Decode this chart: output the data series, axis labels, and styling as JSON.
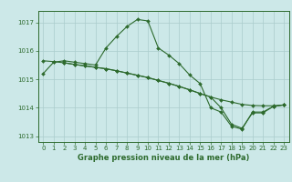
{
  "bg_color": "#cce8e8",
  "grid_color": "#aacccc",
  "line_color": "#2d6a2d",
  "xlabel": "Graphe pression niveau de la mer (hPa)",
  "xlim": [
    -0.5,
    23.5
  ],
  "ylim": [
    1012.8,
    1017.4
  ],
  "yticks": [
    1013,
    1014,
    1015,
    1016,
    1017
  ],
  "xticks": [
    0,
    1,
    2,
    3,
    4,
    5,
    6,
    7,
    8,
    9,
    10,
    11,
    12,
    13,
    14,
    15,
    16,
    17,
    18,
    19,
    20,
    21,
    22,
    23
  ],
  "series": [
    {
      "x": [
        0,
        1,
        2,
        3,
        4,
        5,
        6,
        7,
        8,
        9,
        10,
        11,
        12,
        13,
        14,
        15,
        16,
        17,
        18,
        19,
        20,
        21,
        22,
        23
      ],
      "y": [
        1015.2,
        1015.6,
        1015.65,
        1015.6,
        1015.55,
        1015.5,
        1016.1,
        1016.5,
        1016.85,
        1017.1,
        1017.05,
        1016.1,
        1015.85,
        1015.55,
        1015.15,
        1014.85,
        1014.0,
        1013.85,
        1013.35,
        1013.25,
        1013.85,
        1013.85,
        1014.05,
        1014.1
      ]
    },
    {
      "x": [
        0,
        1,
        2,
        3,
        4,
        5,
        6,
        7,
        8,
        9,
        10,
        11,
        12,
        13,
        14,
        15,
        16,
        17,
        18,
        19,
        20,
        21,
        22,
        23
      ],
      "y": [
        1015.65,
        1015.62,
        1015.58,
        1015.52,
        1015.47,
        1015.42,
        1015.37,
        1015.3,
        1015.22,
        1015.14,
        1015.06,
        1014.96,
        1014.86,
        1014.75,
        1014.63,
        1014.5,
        1014.38,
        1014.28,
        1014.2,
        1014.12,
        1014.08,
        1014.07,
        1014.07,
        1014.1
      ]
    },
    {
      "x": [
        2,
        3,
        4,
        5,
        6,
        7,
        8,
        9,
        10,
        11,
        12,
        13,
        14,
        15,
        16,
        17,
        18,
        19,
        20,
        21,
        22,
        23
      ],
      "y": [
        1015.58,
        1015.52,
        1015.47,
        1015.42,
        1015.37,
        1015.3,
        1015.22,
        1015.14,
        1015.06,
        1014.96,
        1014.86,
        1014.75,
        1014.63,
        1014.5,
        1014.38,
        1014.0,
        1013.42,
        1013.28,
        1013.82,
        1013.82,
        1014.05,
        1014.1
      ]
    }
  ]
}
